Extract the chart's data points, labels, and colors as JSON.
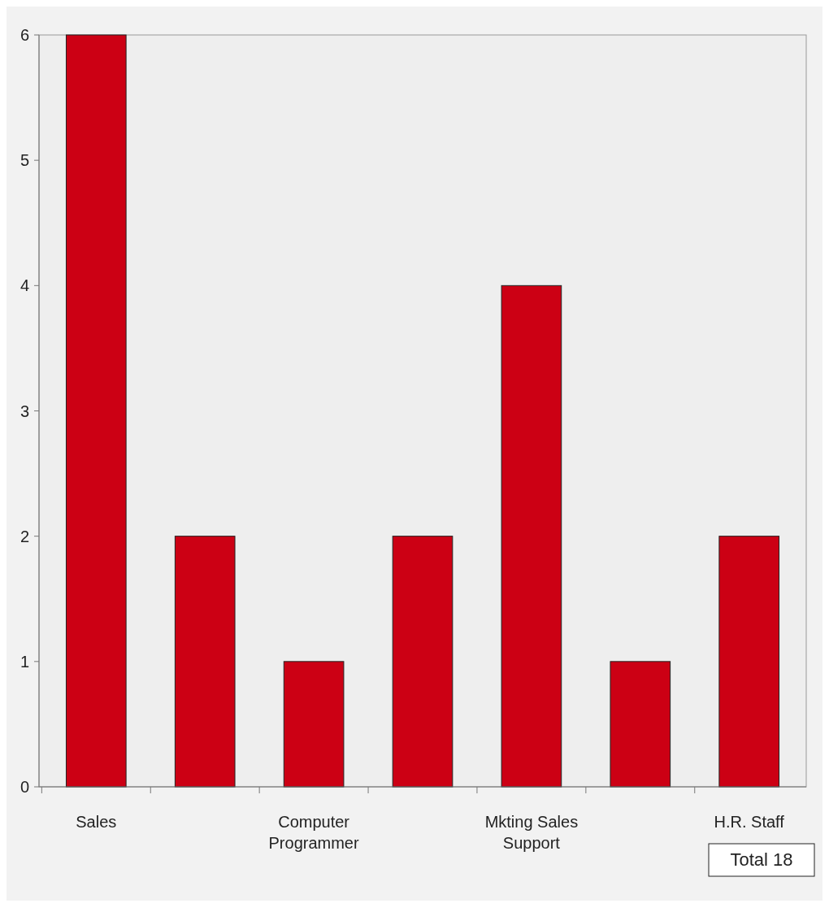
{
  "chart_data": {
    "type": "bar",
    "categories": [
      "Sales",
      null,
      "Computer Programmer",
      null,
      "Mkting Sales Support",
      null,
      "H.R. Staff"
    ],
    "values": [
      6,
      2,
      1,
      2,
      4,
      1,
      2
    ],
    "color": "#cc0014",
    "ylim": [
      0,
      6
    ],
    "yticks": [
      0,
      1,
      2,
      3,
      4,
      5,
      6
    ],
    "annotations": [
      "Total 18"
    ]
  }
}
